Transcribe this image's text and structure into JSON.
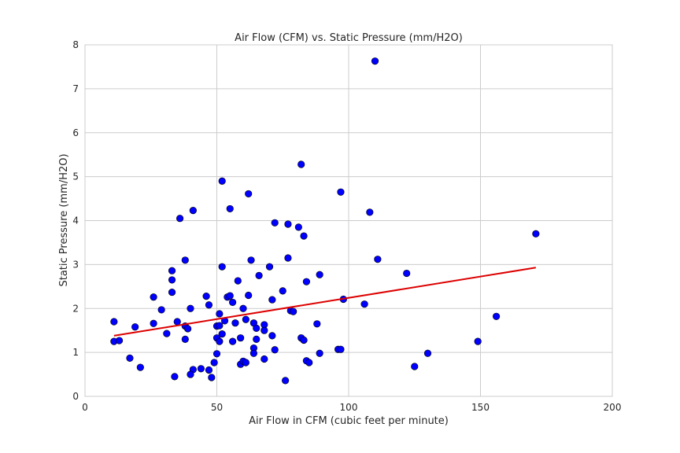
{
  "chart_data": {
    "type": "scatter",
    "title": "Air Flow (CFM) vs. Static Pressure (mm/H2O)",
    "xlabel": "Air Flow in CFM (cubic feet per minute)",
    "ylabel": "Static Pressure (mm/H2O)",
    "xlim": [
      0,
      200
    ],
    "ylim": [
      0,
      8
    ],
    "xticks": [
      "0",
      "50",
      "100",
      "150",
      "200"
    ],
    "yticks": [
      "0",
      "1",
      "2",
      "3",
      "4",
      "5",
      "6",
      "7",
      "8"
    ],
    "grid": true,
    "point_color": "#0000ff",
    "trend_color": "#dd0000",
    "trendline": {
      "x": [
        11,
        171
      ],
      "y": [
        1.38,
        2.93
      ]
    },
    "points": [
      [
        11,
        1.25
      ],
      [
        11,
        1.7
      ],
      [
        13,
        1.27
      ],
      [
        17,
        0.87
      ],
      [
        19,
        1.58
      ],
      [
        21,
        0.66
      ],
      [
        26,
        1.66
      ],
      [
        26,
        2.26
      ],
      [
        29,
        1.97
      ],
      [
        31,
        1.43
      ],
      [
        33,
        2.86
      ],
      [
        33,
        2.65
      ],
      [
        33,
        2.37
      ],
      [
        34,
        0.45
      ],
      [
        35,
        1.7
      ],
      [
        36,
        4.05
      ],
      [
        38,
        3.1
      ],
      [
        38,
        1.3
      ],
      [
        38,
        1.6
      ],
      [
        39,
        1.54
      ],
      [
        40,
        2.0
      ],
      [
        41,
        0.61
      ],
      [
        41,
        4.23
      ],
      [
        40,
        0.5
      ],
      [
        44,
        0.63
      ],
      [
        46,
        2.28
      ],
      [
        47,
        2.08
      ],
      [
        47,
        0.6
      ],
      [
        48,
        0.43
      ],
      [
        49,
        0.77
      ],
      [
        50,
        0.97
      ],
      [
        50,
        1.6
      ],
      [
        51,
        1.61
      ],
      [
        50,
        1.33
      ],
      [
        51,
        1.25
      ],
      [
        51,
        1.88
      ],
      [
        52,
        1.42
      ],
      [
        52,
        4.9
      ],
      [
        52,
        2.95
      ],
      [
        53,
        1.72
      ],
      [
        54,
        2.26
      ],
      [
        55,
        4.27
      ],
      [
        55,
        2.29
      ],
      [
        56,
        2.14
      ],
      [
        56,
        1.25
      ],
      [
        57,
        1.67
      ],
      [
        58,
        2.63
      ],
      [
        59,
        1.33
      ],
      [
        59,
        0.73
      ],
      [
        60,
        0.8
      ],
      [
        60,
        2.0
      ],
      [
        61,
        1.75
      ],
      [
        61,
        0.77
      ],
      [
        62,
        2.3
      ],
      [
        62,
        4.61
      ],
      [
        63,
        3.1
      ],
      [
        64,
        1.1
      ],
      [
        64,
        1.67
      ],
      [
        64,
        0.98
      ],
      [
        65,
        1.55
      ],
      [
        65,
        1.3
      ],
      [
        66,
        2.75
      ],
      [
        68,
        1.63
      ],
      [
        68,
        1.5
      ],
      [
        68,
        0.85
      ],
      [
        70,
        2.95
      ],
      [
        71,
        1.38
      ],
      [
        71,
        2.2
      ],
      [
        72,
        3.95
      ],
      [
        72,
        1.06
      ],
      [
        75,
        2.4
      ],
      [
        76,
        0.36
      ],
      [
        77,
        3.15
      ],
      [
        77,
        3.92
      ],
      [
        78,
        1.95
      ],
      [
        79,
        1.93
      ],
      [
        81,
        3.85
      ],
      [
        82,
        5.28
      ],
      [
        82,
        1.33
      ],
      [
        83,
        1.28
      ],
      [
        83,
        3.65
      ],
      [
        84,
        0.81
      ],
      [
        84,
        2.61
      ],
      [
        85,
        0.77
      ],
      [
        88,
        1.65
      ],
      [
        89,
        2.77
      ],
      [
        89,
        0.98
      ],
      [
        96,
        1.07
      ],
      [
        97,
        4.65
      ],
      [
        97,
        1.07
      ],
      [
        98,
        2.21
      ],
      [
        106,
        2.1
      ],
      [
        108,
        4.19
      ],
      [
        110,
        7.63
      ],
      [
        111,
        3.12
      ],
      [
        122,
        2.8
      ],
      [
        125,
        0.68
      ],
      [
        130,
        0.98
      ],
      [
        149,
        1.25
      ],
      [
        156,
        1.82
      ],
      [
        171,
        3.7
      ]
    ]
  }
}
